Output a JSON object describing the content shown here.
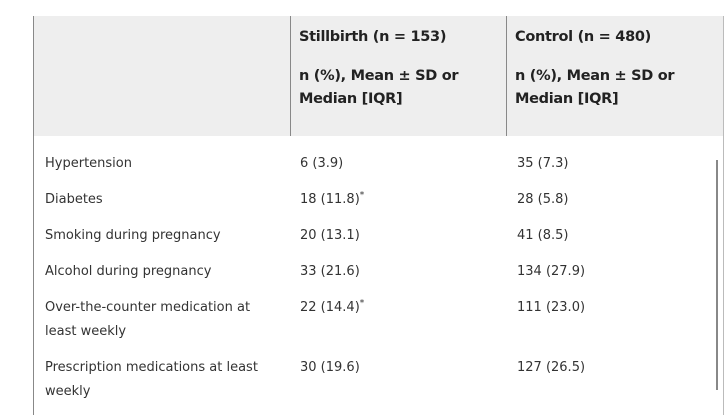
{
  "table": {
    "headers": [
      {
        "title": "",
        "subtitle": ""
      },
      {
        "title": "Stillbirth (n = 153)",
        "subtitle": "n (%), Mean ± SD or Median [IQR]"
      },
      {
        "title": "Control (n = 480)",
        "subtitle": "n (%), Mean ± SD or Median [IQR]"
      }
    ],
    "rows": [
      {
        "label": "Hypertension",
        "stillbirth": "6 (3.9)",
        "stillbirth_mark": "",
        "control": "35 (7.3)"
      },
      {
        "label": "Diabetes",
        "stillbirth": "18 (11.8)",
        "stillbirth_mark": "*",
        "control": "28 (5.8)"
      },
      {
        "label": "Smoking during pregnancy",
        "stillbirth": "20 (13.1)",
        "stillbirth_mark": "",
        "control": "41 (8.5)"
      },
      {
        "label": "Alcohol during pregnancy",
        "stillbirth": "33 (21.6)",
        "stillbirth_mark": "",
        "control": "134 (27.9)"
      },
      {
        "label": "Over-the-counter medication at least weekly",
        "stillbirth": "22 (14.4)",
        "stillbirth_mark": "*",
        "control": "111 (23.0)"
      },
      {
        "label": "Prescription medications at least weekly",
        "stillbirth": "30 (19.6)",
        "stillbirth_mark": "",
        "control": "127 (26.5)"
      }
    ]
  }
}
